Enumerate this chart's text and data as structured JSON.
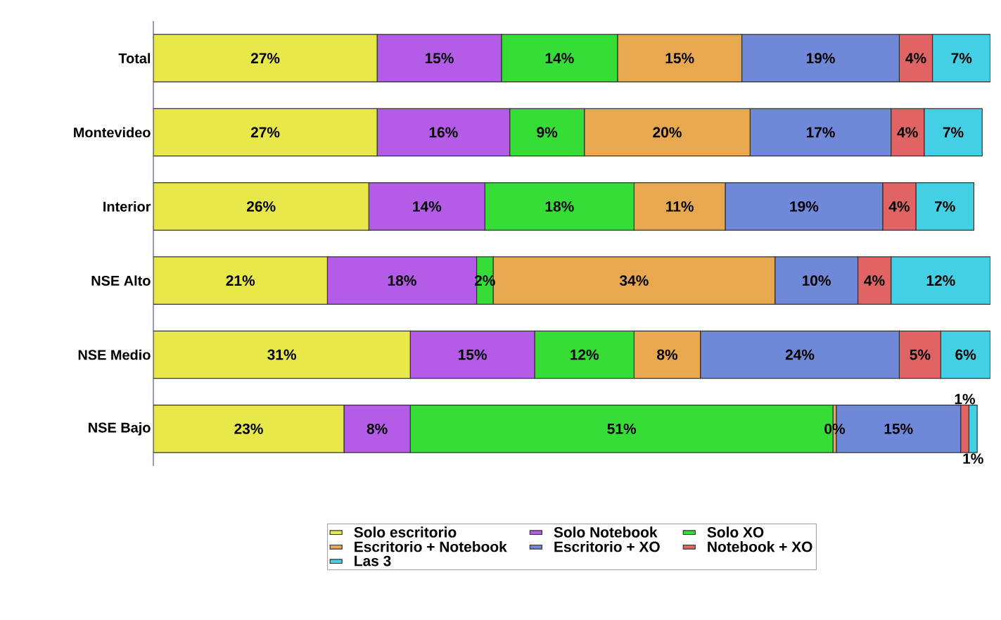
{
  "chart_data": {
    "type": "bar",
    "orientation": "horizontal",
    "stacked": true,
    "legend": "bottom",
    "categories": [
      "Total",
      "Montevideo",
      "Interior",
      "NSE Alto",
      "NSE Medio",
      "NSE Bajo"
    ],
    "series": [
      {
        "name": "Solo escritorio",
        "color": "#e8e84a",
        "values": [
          27,
          27,
          26,
          21,
          31,
          23
        ],
        "value_labels": [
          "27%",
          "27%",
          "26%",
          "21%",
          "31%",
          "23%"
        ]
      },
      {
        "name": "Solo Notebook",
        "color": "#b45ce8",
        "values": [
          15,
          16,
          14,
          18,
          15,
          8
        ],
        "value_labels": [
          "15%",
          "16%",
          "14%",
          "18%",
          "15%",
          "8%"
        ]
      },
      {
        "name": "Solo XO",
        "color": "#36dd36",
        "values": [
          14,
          9,
          18,
          2,
          12,
          51
        ],
        "value_labels": [
          "14%",
          "9%",
          "18%",
          "2%",
          "12%",
          "51%"
        ]
      },
      {
        "name": "Escritorio + Notebook",
        "color": "#e8a850",
        "values": [
          15,
          20,
          11,
          34,
          8,
          0.4
        ],
        "value_labels": [
          "15%",
          "20%",
          "11%",
          "34%",
          "8%",
          "0%"
        ]
      },
      {
        "name": "Escritorio + XO",
        "color": "#7088d8",
        "values": [
          19,
          17,
          19,
          10,
          24,
          15
        ],
        "value_labels": [
          "19%",
          "17%",
          "19%",
          "10%",
          "24%",
          "15%"
        ]
      },
      {
        "name": "Notebook + XO",
        "color": "#e06464",
        "values": [
          4,
          4,
          4,
          4,
          5,
          1
        ],
        "value_labels": [
          "4%",
          "4%",
          "4%",
          "4%",
          "5%",
          "1%"
        ]
      },
      {
        "name": "Las 3",
        "color": "#44d0e4",
        "values": [
          7,
          7,
          7,
          12,
          6,
          1
        ],
        "value_labels": [
          "7%",
          "7%",
          "7%",
          "12%",
          "6%",
          "1%"
        ]
      }
    ]
  }
}
